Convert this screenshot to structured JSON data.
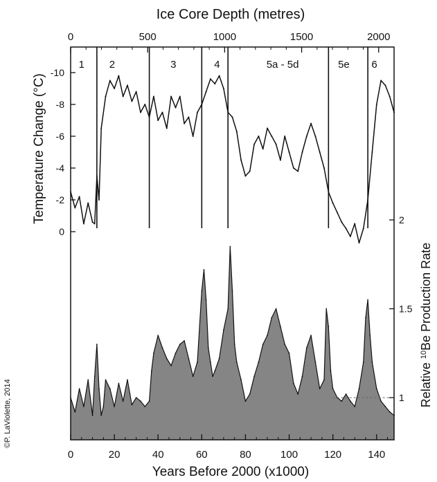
{
  "chart_data": [
    {
      "type": "line",
      "name": "temperature",
      "top_axis_label": "Ice Core Depth  (metres)",
      "top_ticks": [
        "0",
        "500",
        "1000",
        "1500",
        "2000"
      ],
      "top_tick_values": [
        0,
        500,
        1000,
        1500,
        2000
      ],
      "top_range": [
        0,
        2100
      ],
      "xlabel": "Years Before 2000  (x1000)",
      "x_ticks": [
        "0",
        "20",
        "40",
        "60",
        "80",
        "100",
        "120",
        "140"
      ],
      "x_tick_values": [
        0,
        20,
        40,
        60,
        80,
        100,
        120,
        140
      ],
      "xlim": [
        0,
        148
      ],
      "ylabel": "Temperature Change  (°C)",
      "y_ticks": [
        "-10",
        "-8",
        "-6",
        "-4",
        "-2",
        "0"
      ],
      "y_tick_values": [
        -10,
        -8,
        -6,
        -4,
        -2,
        0
      ],
      "ylim_inverted": [
        1.5,
        -11
      ],
      "stages": [
        {
          "label": "1",
          "x": 5
        },
        {
          "label": "2",
          "x": 19
        },
        {
          "label": "3",
          "x": 47
        },
        {
          "label": "4",
          "x": 67
        },
        {
          "label": "5a - 5d",
          "x": 97
        },
        {
          "label": "5e",
          "x": 125
        },
        {
          "label": "6",
          "x": 139
        }
      ],
      "stage_boundaries": [
        12,
        36,
        60,
        72,
        118,
        136
      ],
      "x": [
        0,
        2,
        4,
        6,
        8,
        10,
        11,
        12,
        13,
        14,
        16,
        18,
        20,
        22,
        24,
        26,
        28,
        30,
        32,
        34,
        36,
        38,
        40,
        42,
        44,
        46,
        48,
        50,
        52,
        54,
        56,
        58,
        60,
        62,
        64,
        66,
        68,
        70,
        72,
        74,
        76,
        78,
        80,
        82,
        84,
        86,
        88,
        90,
        92,
        94,
        96,
        98,
        100,
        102,
        104,
        106,
        108,
        110,
        112,
        114,
        116,
        118,
        120,
        122,
        124,
        126,
        128,
        130,
        132,
        134,
        136,
        138,
        140,
        142,
        144,
        146,
        148
      ],
      "y": [
        -2.5,
        -1.5,
        -2.2,
        -0.5,
        -1.8,
        -0.6,
        -0.5,
        -3.5,
        -2.0,
        -6.5,
        -8.5,
        -9.5,
        -9.0,
        -9.8,
        -8.5,
        -9.2,
        -8.2,
        -8.8,
        -7.5,
        -8.0,
        -7.2,
        -8.5,
        -7.0,
        -7.5,
        -6.5,
        -8.5,
        -7.8,
        -8.5,
        -6.8,
        -7.2,
        -6.0,
        -7.5,
        -8.0,
        -8.8,
        -9.6,
        -9.3,
        -9.8,
        -9.0,
        -7.5,
        -7.2,
        -6.3,
        -4.5,
        -3.5,
        -3.8,
        -5.5,
        -6.0,
        -5.2,
        -6.5,
        -6.0,
        -5.5,
        -4.5,
        -6.0,
        -5.0,
        -4.0,
        -3.8,
        -5.0,
        -6.0,
        -6.8,
        -6.0,
        -5.0,
        -4.0,
        -2.5,
        -1.8,
        -1.2,
        -0.6,
        -0.2,
        0.3,
        -0.5,
        0.7,
        -0.2,
        -2.0,
        -5.0,
        -8.0,
        -9.5,
        -9.2,
        -8.5,
        -7.5
      ]
    },
    {
      "type": "area",
      "name": "10Be",
      "ylabel": "Relative 10Be Production Rate",
      "ylabel_main": "Relative ",
      "ylabel_sup": "10",
      "ylabel_tail": "Be Production Rate",
      "y_ticks": [
        "1",
        "1.5",
        "2"
      ],
      "y_tick_values": [
        1,
        1.5,
        2
      ],
      "ylim": [
        0.85,
        2.23
      ],
      "reference_line": 1,
      "x": [
        0,
        2,
        4,
        6,
        8,
        10,
        11,
        12,
        13,
        14,
        15,
        16,
        18,
        20,
        22,
        24,
        26,
        28,
        30,
        32,
        34,
        36,
        37,
        38,
        40,
        42,
        44,
        46,
        48,
        50,
        52,
        54,
        56,
        58,
        60,
        61,
        62,
        63,
        64,
        65,
        66,
        68,
        70,
        72,
        73,
        74,
        75,
        76,
        78,
        80,
        82,
        84,
        86,
        88,
        90,
        92,
        94,
        96,
        98,
        100,
        102,
        104,
        106,
        108,
        110,
        112,
        114,
        116,
        117,
        118,
        119,
        120,
        122,
        124,
        126,
        128,
        130,
        132,
        134,
        135,
        136,
        137,
        138,
        140,
        142,
        144,
        146,
        148
      ],
      "values": [
        1.0,
        0.92,
        1.05,
        0.95,
        1.1,
        0.9,
        1.12,
        1.3,
        1.05,
        0.9,
        0.95,
        1.1,
        1.05,
        0.95,
        1.08,
        0.98,
        1.1,
        0.96,
        1.0,
        0.98,
        0.95,
        0.98,
        1.15,
        1.25,
        1.35,
        1.28,
        1.22,
        1.18,
        1.25,
        1.3,
        1.32,
        1.22,
        1.12,
        1.2,
        1.6,
        1.72,
        1.55,
        1.28,
        1.2,
        1.12,
        1.15,
        1.22,
        1.38,
        1.5,
        1.85,
        1.6,
        1.3,
        1.2,
        1.1,
        0.98,
        1.02,
        1.12,
        1.2,
        1.3,
        1.35,
        1.45,
        1.5,
        1.4,
        1.3,
        1.25,
        1.08,
        1.02,
        1.12,
        1.28,
        1.35,
        1.2,
        1.05,
        1.1,
        1.5,
        1.4,
        1.15,
        1.05,
        1.0,
        0.98,
        1.02,
        0.98,
        0.95,
        1.05,
        1.2,
        1.45,
        1.55,
        1.35,
        1.2,
        1.05,
        0.98,
        0.95,
        0.92,
        0.9
      ]
    }
  ],
  "watermark": "©P. LaViolette, 2014"
}
